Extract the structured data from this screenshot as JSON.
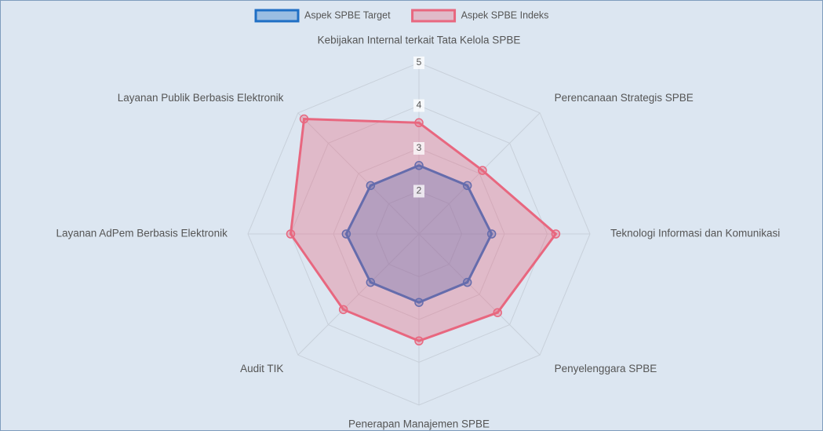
{
  "chart_data": {
    "type": "radar",
    "categories": [
      "Kebijakan Internal terkait Tata Kelola SPBE",
      "Perencanaan Strategis SPBE",
      "Teknologi Informasi dan Komunikasi",
      "Penyelenggara SPBE",
      "Penerapan Manajemen SPBE",
      "Audit TIK",
      "Layanan AdPem Berbasis Elektronik",
      "Layanan Publik Berbasis Elektronik"
    ],
    "series": [
      {
        "name": "Aspek SPBE Target",
        "color": "#1f6fc5",
        "values": [
          2.6,
          2.6,
          2.7,
          2.6,
          2.6,
          2.6,
          2.7,
          2.6
        ]
      },
      {
        "name": "Aspek SPBE Indeks",
        "color": "#e8677f",
        "values": [
          3.6,
          3.1,
          4.2,
          3.6,
          3.5,
          3.5,
          4.0,
          4.8
        ]
      }
    ],
    "ylim": [
      1,
      5
    ],
    "yticks": [
      2,
      3,
      4,
      5
    ],
    "grid": true,
    "legend": "top"
  }
}
